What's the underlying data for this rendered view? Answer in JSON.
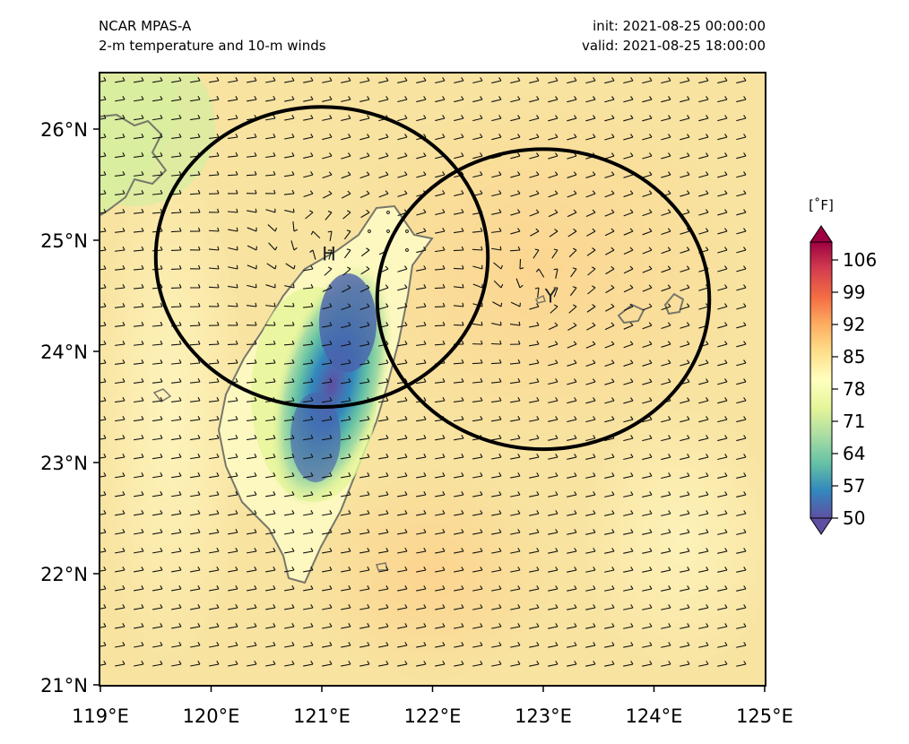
{
  "header": {
    "model": "NCAR MPAS-A",
    "field": "2-m temperature and 10-m winds",
    "init": "init: 2021-08-25 00:00:00",
    "valid": "valid: 2021-08-25 18:00:00"
  },
  "map": {
    "lon_range": [
      119,
      125
    ],
    "lat_range": [
      21,
      26.5
    ],
    "lon_ticks": [
      {
        "value": 119,
        "label": "119°E"
      },
      {
        "value": 120,
        "label": "120°E"
      },
      {
        "value": 121,
        "label": "121°E"
      },
      {
        "value": 122,
        "label": "122°E"
      },
      {
        "value": 123,
        "label": "123°E"
      },
      {
        "value": 124,
        "label": "124°E"
      },
      {
        "value": 125,
        "label": "125°E"
      }
    ],
    "lat_ticks": [
      {
        "value": 21,
        "label": "21°N"
      },
      {
        "value": 22,
        "label": "22°N"
      },
      {
        "value": 23,
        "label": "23°N"
      },
      {
        "value": 24,
        "label": "24°N"
      },
      {
        "value": 25,
        "label": "25°N"
      },
      {
        "value": 26,
        "label": "26°N"
      }
    ],
    "circles": [
      {
        "label": "H",
        "center_lon": 121.0,
        "center_lat": 24.85,
        "radius_deg_lon": 1.5,
        "radius_deg_lat": 1.35
      },
      {
        "label": "Y",
        "center_lon": 123.0,
        "center_lat": 24.47,
        "radius_deg_lon": 1.5,
        "radius_deg_lat": 1.35
      }
    ],
    "background_color": "#f8e3a0",
    "land_color": "#fdf8c0",
    "coast_color": "#77776a"
  },
  "colorbar": {
    "unit": "[˚F]",
    "ticks": [
      "50",
      "57",
      "64",
      "71",
      "78",
      "85",
      "92",
      "99",
      "106"
    ],
    "colors": [
      "#5e4fa2",
      "#3288bd",
      "#66c2a5",
      "#abdda4",
      "#e6f598",
      "#ffffbf",
      "#fee08b",
      "#fdae61",
      "#f46d43",
      "#d53e4f",
      "#9e0142"
    ]
  }
}
